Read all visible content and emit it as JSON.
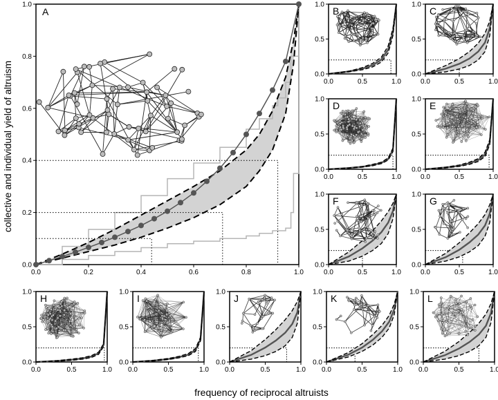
{
  "figure": {
    "ylabel": "collective and individual yield of altruism",
    "xlabel": "frequency of reciprocal altruists"
  },
  "colors": {
    "mean_curve": "#555555",
    "bounds": "#000000",
    "band": "#d3d3d3",
    "step_outline": "#b5b5b5",
    "network_node": "#bdbdbd",
    "network_edge": "#222222"
  },
  "chart_data": [
    {
      "panel": "A",
      "type": "line",
      "xlim": [
        0,
        1
      ],
      "ylim": [
        0,
        1
      ],
      "xticks": [
        "0.0",
        "0.2",
        "0.4",
        "0.6",
        "0.8",
        "1.0"
      ],
      "yticks": [
        "0.0",
        "0.2",
        "0.4",
        "0.6",
        "0.8",
        "1.0"
      ],
      "network_inset": "sparse graph, ~60 nodes",
      "series": [
        {
          "role": "mean_markers",
          "x": [
            0,
            0.05,
            0.1,
            0.15,
            0.2,
            0.25,
            0.3,
            0.35,
            0.4,
            0.45,
            0.5,
            0.55,
            0.6,
            0.65,
            0.7,
            0.75,
            0.8,
            0.85,
            0.9,
            0.95,
            1.0
          ],
          "y": [
            0,
            0.015,
            0.031,
            0.048,
            0.066,
            0.085,
            0.105,
            0.127,
            0.15,
            0.176,
            0.205,
            0.238,
            0.275,
            0.32,
            0.37,
            0.43,
            0.5,
            0.58,
            0.67,
            0.78,
            1.0
          ]
        },
        {
          "role": "upper_dashed",
          "x": [
            0,
            0.1,
            0.2,
            0.3,
            0.4,
            0.5,
            0.6,
            0.7,
            0.8,
            0.85,
            0.9,
            0.95,
            0.98,
            1.0
          ],
          "y": [
            0,
            0.04,
            0.085,
            0.135,
            0.19,
            0.245,
            0.3,
            0.36,
            0.44,
            0.5,
            0.59,
            0.72,
            0.86,
            1.0
          ]
        },
        {
          "role": "lower_dashed",
          "x": [
            0,
            0.1,
            0.2,
            0.3,
            0.4,
            0.5,
            0.6,
            0.7,
            0.8,
            0.85,
            0.9,
            0.95,
            0.98,
            1.0
          ],
          "y": [
            0,
            0.025,
            0.05,
            0.075,
            0.105,
            0.14,
            0.18,
            0.23,
            0.3,
            0.36,
            0.44,
            0.58,
            0.77,
            1.0
          ]
        },
        {
          "role": "upper_step",
          "x": [
            0,
            0.1,
            0.2,
            0.3,
            0.4,
            0.5,
            0.6,
            0.7,
            0.8,
            0.85,
            0.9,
            0.92,
            0.95,
            0.97,
            1.0
          ],
          "y": [
            0,
            0.07,
            0.135,
            0.2,
            0.265,
            0.33,
            0.39,
            0.45,
            0.52,
            0.56,
            0.61,
            0.64,
            0.7,
            0.8,
            1.0
          ]
        },
        {
          "role": "lower_step",
          "x": [
            0,
            0.1,
            0.2,
            0.3,
            0.4,
            0.5,
            0.6,
            0.7,
            0.8,
            0.85,
            0.9,
            0.95,
            0.97,
            0.98,
            1.0
          ],
          "y": [
            0,
            0.02,
            0.035,
            0.05,
            0.065,
            0.08,
            0.09,
            0.1,
            0.11,
            0.12,
            0.13,
            0.14,
            0.2,
            0.35,
            1.0
          ]
        }
      ],
      "reference_lines": [
        {
          "y": 0.1,
          "x": 0.44
        },
        {
          "y": 0.2,
          "x": 0.71
        },
        {
          "y": 0.4,
          "x": 0.92
        }
      ]
    },
    {
      "panel": "B",
      "type": "line",
      "xlim": [
        0,
        1
      ],
      "ylim": [
        0,
        1
      ],
      "xticks": [
        "0.0",
        "0.5",
        "1.0"
      ],
      "yticks": [
        "0.0",
        "0.5",
        "1.0"
      ],
      "network_inset": "dense cluster with periphery",
      "upper": [
        0,
        0.04,
        0.09,
        0.15,
        0.24,
        0.4,
        0.65,
        1.0
      ],
      "lower": [
        0,
        0.03,
        0.06,
        0.1,
        0.17,
        0.3,
        0.55,
        1.0
      ],
      "reference_line": {
        "y": 0.2,
        "x": 0.92
      }
    },
    {
      "panel": "C",
      "type": "line",
      "xlim": [
        0,
        1
      ],
      "ylim": [
        0,
        1
      ],
      "xticks": [
        "0.0",
        "0.5",
        "1.0"
      ],
      "yticks": [
        "0.0",
        "0.5",
        "1.0"
      ],
      "network_inset": "loose random graph",
      "upper": [
        0,
        0.12,
        0.22,
        0.32,
        0.44,
        0.58,
        0.76,
        1.0
      ],
      "lower": [
        0,
        0.03,
        0.07,
        0.12,
        0.2,
        0.32,
        0.55,
        1.0
      ],
      "reference_line": {
        "y": 0.2,
        "x": 0.5
      }
    },
    {
      "panel": "D",
      "type": "line",
      "xlim": [
        0,
        1
      ],
      "ylim": [
        0,
        1
      ],
      "xticks": [
        "0.0",
        "0.5",
        "1.0"
      ],
      "yticks": [
        "0.0",
        "0.5",
        "1.0"
      ],
      "network_inset": "very dense single cluster",
      "upper": [
        0,
        0.02,
        0.04,
        0.07,
        0.1,
        0.16,
        0.3,
        1.0
      ],
      "lower": [
        0,
        0.015,
        0.03,
        0.05,
        0.08,
        0.13,
        0.25,
        1.0
      ],
      "reference_line": {
        "y": 0.2,
        "x": 0.95
      }
    },
    {
      "panel": "E",
      "type": "line",
      "xlim": [
        0,
        1
      ],
      "ylim": [
        0,
        1
      ],
      "xticks": [
        "0.0",
        "0.5",
        "1.0"
      ],
      "yticks": [
        "0.0",
        "0.5",
        "1.0"
      ],
      "network_inset": "two dense clusters",
      "upper": [
        0,
        0.03,
        0.06,
        0.1,
        0.15,
        0.24,
        0.42,
        1.0
      ],
      "lower": [
        0,
        0.02,
        0.04,
        0.07,
        0.11,
        0.18,
        0.35,
        1.0
      ],
      "reference_line": {
        "y": 0.2,
        "x": 0.94
      }
    },
    {
      "panel": "F",
      "type": "line",
      "xlim": [
        0,
        1
      ],
      "ylim": [
        0,
        1
      ],
      "xticks": [
        "0.0",
        "0.5",
        "1.0"
      ],
      "yticks": [
        "0.0",
        "0.5",
        "1.0"
      ],
      "network_inset": "tree-like hubs",
      "upper": [
        0,
        0.18,
        0.34,
        0.48,
        0.62,
        0.75,
        0.87,
        1.0
      ],
      "lower": [
        0,
        0.05,
        0.12,
        0.2,
        0.3,
        0.44,
        0.65,
        1.0
      ],
      "reference_line": {
        "y": 0.2,
        "x": 0.5
      }
    },
    {
      "panel": "G",
      "type": "line",
      "xlim": [
        0,
        1
      ],
      "ylim": [
        0,
        1
      ],
      "xticks": [
        "0.0",
        "0.5",
        "1.0"
      ],
      "yticks": [
        "0.0",
        "0.5",
        "1.0"
      ],
      "network_inset": "small sparse cluster",
      "upper": [
        0,
        0.16,
        0.31,
        0.45,
        0.58,
        0.71,
        0.85,
        1.0
      ],
      "lower": [
        0,
        0.05,
        0.11,
        0.18,
        0.27,
        0.4,
        0.6,
        1.0
      ],
      "reference_line": {
        "y": 0.2,
        "x": 0.55
      }
    },
    {
      "panel": "H",
      "type": "line",
      "xlim": [
        0,
        1
      ],
      "ylim": [
        0,
        1
      ],
      "xticks": [
        "0.0",
        "0.5",
        "1.0"
      ],
      "yticks": [
        "0.0",
        "0.5",
        "1.0"
      ],
      "network_inset": "dense cluster",
      "upper": [
        0,
        0.02,
        0.04,
        0.06,
        0.09,
        0.14,
        0.26,
        1.0
      ],
      "lower": [
        0,
        0.01,
        0.025,
        0.04,
        0.065,
        0.11,
        0.22,
        1.0
      ],
      "reference_line": {
        "y": 0.2,
        "x": 0.96
      }
    },
    {
      "panel": "I",
      "type": "line",
      "xlim": [
        0,
        1
      ],
      "ylim": [
        0,
        1
      ],
      "xticks": [
        "0.0",
        "0.5",
        "1.0"
      ],
      "yticks": [
        "0.0",
        "0.5",
        "1.0"
      ],
      "network_inset": "complete graph on circle",
      "upper": [
        0,
        0.025,
        0.05,
        0.08,
        0.12,
        0.19,
        0.35,
        1.0
      ],
      "lower": [
        0,
        0.015,
        0.035,
        0.06,
        0.09,
        0.15,
        0.3,
        1.0
      ],
      "reference_line": {
        "y": 0.2,
        "x": 0.92
      }
    },
    {
      "panel": "J",
      "type": "line",
      "xlim": [
        0,
        1
      ],
      "ylim": [
        0,
        1
      ],
      "xticks": [
        "0.0",
        "0.5",
        "1.0"
      ],
      "yticks": [
        "0.0",
        "0.5",
        "1.0"
      ],
      "network_inset": "star-like sparse graph",
      "upper": [
        0,
        0.16,
        0.32,
        0.46,
        0.6,
        0.73,
        0.86,
        1.0
      ],
      "lower": [
        0,
        0.04,
        0.09,
        0.15,
        0.23,
        0.35,
        0.55,
        1.0
      ],
      "reference_line": {
        "y": 0.2,
        "x": 0.8
      }
    },
    {
      "panel": "K",
      "type": "line",
      "xlim": [
        0,
        1
      ],
      "ylim": [
        0,
        1
      ],
      "xticks": [
        "0.0",
        "0.5",
        "1.0"
      ],
      "yticks": [
        "0.0",
        "0.5",
        "1.0"
      ],
      "network_inset": "sparse graph",
      "upper": [
        0,
        0.13,
        0.26,
        0.39,
        0.52,
        0.66,
        0.82,
        1.0
      ],
      "lower": [
        0,
        0.07,
        0.15,
        0.24,
        0.35,
        0.48,
        0.67,
        1.0
      ],
      "reference_line": {
        "y": 0.2,
        "x": 0.4
      }
    },
    {
      "panel": "L",
      "type": "line",
      "xlim": [
        0,
        1
      ],
      "ylim": [
        0,
        1
      ],
      "xticks": [
        "0.0",
        "0.5",
        "1.0"
      ],
      "yticks": [
        "0.0",
        "0.5",
        "1.0"
      ],
      "network_inset": "medium-density graph",
      "upper": [
        0,
        0.15,
        0.29,
        0.42,
        0.55,
        0.68,
        0.83,
        1.0
      ],
      "lower": [
        0,
        0.04,
        0.09,
        0.15,
        0.23,
        0.35,
        0.56,
        1.0
      ],
      "reference_line": {
        "y": 0.2,
        "x": 0.78
      }
    }
  ]
}
